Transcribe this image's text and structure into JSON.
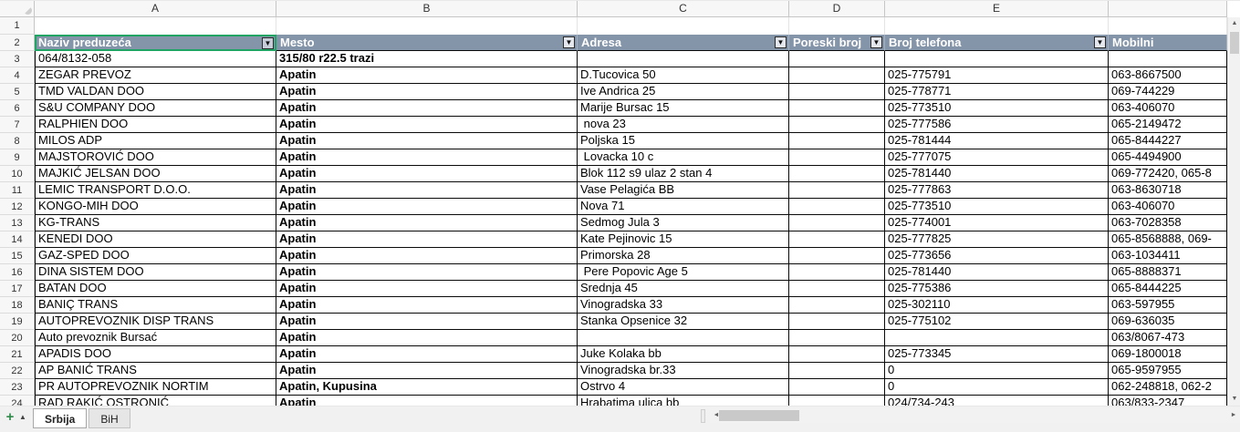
{
  "app_type": "spreadsheet",
  "colors": {
    "filter_header_bg": "#8494A9",
    "filter_header_text": "#FFFFFF",
    "selection_green": "#1FA463",
    "grid_border": "#0A0A0A",
    "header_bg": "#F7F7F7",
    "scrollbar_thumb": "#CDCDCD",
    "tabbar_bg": "#F1F1F1",
    "add_sheet_green": "#2E8B4A"
  },
  "column_header_letters": [
    "A",
    "B",
    "C",
    "D",
    "E",
    ""
  ],
  "filter_headers": [
    {
      "label": "Naziv preduzeća",
      "dropdown": true,
      "selected": true
    },
    {
      "label": "Mesto",
      "dropdown": true,
      "selected": false
    },
    {
      "label": "Adresa",
      "dropdown": true,
      "selected": false
    },
    {
      "label": "Poreski broj",
      "dropdown": true,
      "selected": false
    },
    {
      "label": "Broj telefona",
      "dropdown": true,
      "selected": false
    },
    {
      "label": "Mobilni",
      "dropdown": false,
      "selected": false
    }
  ],
  "rows": [
    {
      "num": "3",
      "a": "064/8132-058",
      "b": "315/80 r22.5 trazi",
      "c": "",
      "d": "",
      "e": "",
      "f": ""
    },
    {
      "num": "4",
      "a": "ZEGAR PREVOZ",
      "b": "Apatin",
      "c": "D.Tucovica 50",
      "d": "",
      "e": "025-775791",
      "f": "063-8667500"
    },
    {
      "num": "5",
      "a": "TMD VALDAN DOO",
      "b": "Apatin",
      "c": "Ive Andrica 25",
      "d": "",
      "e": "025-778771",
      "f": "069-744229"
    },
    {
      "num": "6",
      "a": "S&U COMPANY DOO",
      "b": "Apatin",
      "c": "Marije Bursac 15",
      "d": "",
      "e": "025-773510",
      "f": "063-406070"
    },
    {
      "num": "7",
      "a": "RALPHIEN DOO",
      "b": "Apatin",
      "c": " nova 23",
      "d": "",
      "e": "025-777586",
      "f": "065-2149472"
    },
    {
      "num": "8",
      "a": "MILOS ADP",
      "b": "Apatin",
      "c": "Poljska 15",
      "d": "",
      "e": "025-781444",
      "f": "065-8444227"
    },
    {
      "num": "9",
      "a": "MAJSTOROVIĆ DOO",
      "b": "Apatin",
      "c": " Lovacka 10 c",
      "d": "",
      "e": "025-777075",
      "f": "065-4494900"
    },
    {
      "num": "10",
      "a": "MAJKIĆ JELSAN DOO",
      "b": "Apatin",
      "c": "Blok 112 s9 ulaz 2 stan 4",
      "d": "",
      "e": "025-781440",
      "f": "069-772420, 065-8"
    },
    {
      "num": "11",
      "a": "LEMIC TRANSPORT D.O.O.",
      "b": "Apatin",
      "c": "Vase Pelagića BB",
      "d": "",
      "e": "025-777863",
      "f": "063-8630718"
    },
    {
      "num": "12",
      "a": "KONGO-MIH DOO",
      "b": "Apatin",
      "c": "Nova 71",
      "d": "",
      "e": "025-773510",
      "f": "063-406070"
    },
    {
      "num": "13",
      "a": "KG-TRANS",
      "b": "Apatin",
      "c": "Sedmog Jula 3",
      "d": "",
      "e": "025-774001",
      "f": "063-7028358"
    },
    {
      "num": "14",
      "a": "KENEDI DOO",
      "b": "Apatin",
      "c": "Kate Pejinovic 15",
      "d": "",
      "e": "025-777825",
      "f": "065-8568888, 069-"
    },
    {
      "num": "15",
      "a": "GAZ-SPED DOO",
      "b": "Apatin",
      "c": "Primorska 28",
      "d": "",
      "e": "025-773656",
      "f": "063-1034411"
    },
    {
      "num": "16",
      "a": "DINA SISTEM DOO",
      "b": "Apatin",
      "c": " Pere Popovic Age 5",
      "d": "",
      "e": "025-781440",
      "f": "065-8888371"
    },
    {
      "num": "17",
      "a": "BATAN DOO",
      "b": "Apatin",
      "c": "Srednja 45",
      "d": "",
      "e": "025-775386",
      "f": "065-8444225"
    },
    {
      "num": "18",
      "a": "BANIÇ TRANS",
      "b": "Apatin",
      "c": "Vinogradska 33",
      "d": "",
      "e": "025-302110",
      "f": "063-597955"
    },
    {
      "num": "19",
      "a": "AUTOPREVOZNIK DISP TRANS",
      "b": "Apatin",
      "c": "Stanka Opsenice 32",
      "d": "",
      "e": "025-775102",
      "f": "069-636035"
    },
    {
      "num": "20",
      "a": "Auto prevoznik Bursać",
      "b": "Apatin",
      "c": "",
      "d": "",
      "e": "",
      "f": "063/8067-473"
    },
    {
      "num": "21",
      "a": "APADIS DOO",
      "b": "Apatin",
      "c": "Juke Kolaka bb",
      "d": "",
      "e": "025-773345",
      "f": "069-1800018"
    },
    {
      "num": "22",
      "a": "AP BANIĆ TRANS",
      "b": "Apatin",
      "c": "Vinogradska br.33",
      "d": "",
      "e": "0",
      "f": "065-9597955"
    },
    {
      "num": "23",
      "a": "PR AUTOPREVOZNIK NORTIM",
      "b": "Apatin, Kupusina",
      "c": "Ostrvo 4",
      "d": "",
      "e": "0",
      "f": "062-248818, 062-2"
    },
    {
      "num": "24",
      "a": "RAD RAKIĆ OSTRONIĆ",
      "b": "Apatin",
      "c": "Hrabatima ulica bb",
      "d": "",
      "e": "024/734-243",
      "f": "063/833-2347"
    }
  ],
  "row1_number": "1",
  "filter_row_number": "2",
  "sheet_tabs": {
    "tabs": [
      {
        "label": "Srbija",
        "active": true
      },
      {
        "label": "BiH",
        "active": false
      }
    ]
  },
  "icons": {
    "dropdown": "▼",
    "scroll_up": "▲",
    "scroll_down": "▼",
    "scroll_left": "◄",
    "scroll_right": "►",
    "add_sheet": "+",
    "sheet_nav": "▲"
  }
}
